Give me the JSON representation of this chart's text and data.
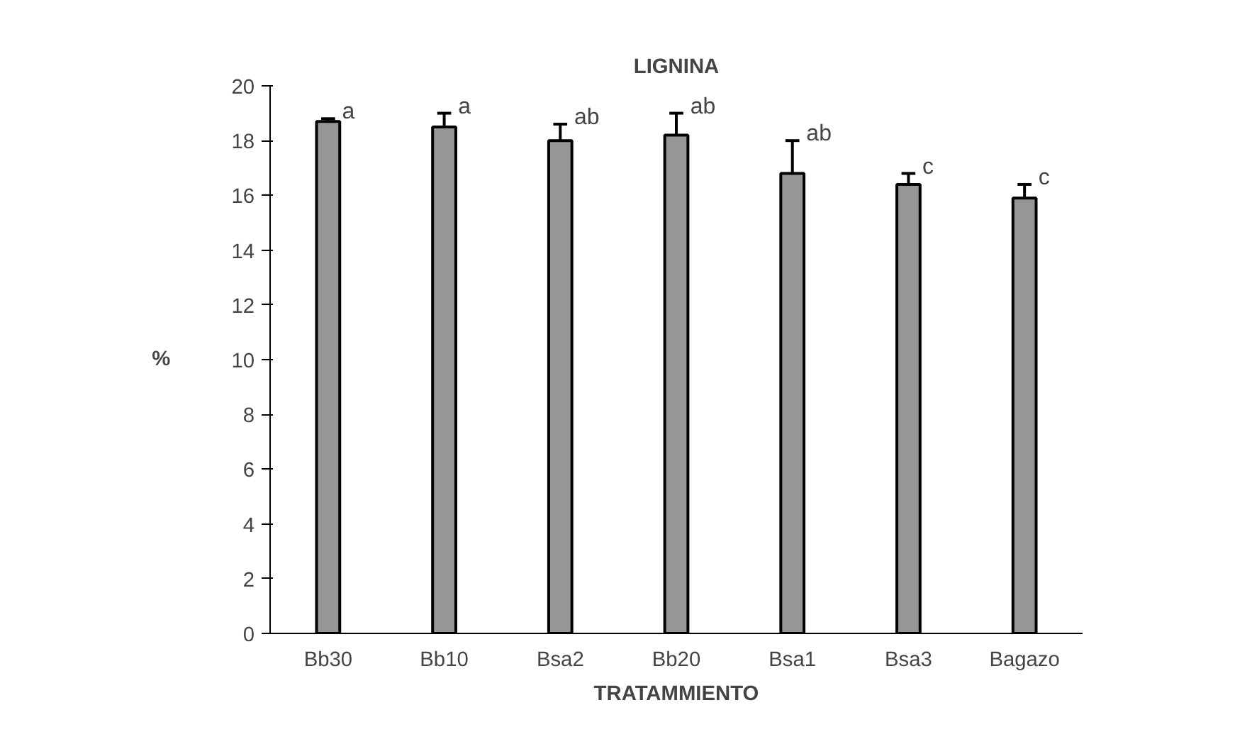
{
  "chart_data": {
    "type": "bar",
    "title": "LIGNINA",
    "xlabel": "TRATAMMIENTO",
    "ylabel": "%",
    "categories": [
      "Bb30",
      "Bb10",
      "Bsa2",
      "Bb20",
      "Bsa1",
      "Bsa3",
      "Bagazo"
    ],
    "values": [
      18.7,
      18.5,
      18.0,
      18.2,
      16.8,
      16.4,
      15.9
    ],
    "errors": [
      0.1,
      0.5,
      0.6,
      0.8,
      1.2,
      0.4,
      0.5
    ],
    "color": "#969696",
    "ylim": [
      0,
      20
    ],
    "yticks": [
      0,
      2,
      4,
      6,
      8,
      10,
      12,
      14,
      16,
      18,
      20
    ],
    "grid": false,
    "annotations": [
      {
        "text": "a",
        "x": "Bb30",
        "y": 18.8
      },
      {
        "text": "a",
        "x": "Bb10",
        "y": 19.0
      },
      {
        "text": "ab",
        "x": "Bsa2",
        "y": 18.6
      },
      {
        "text": "ab",
        "x": "Bb20",
        "y": 19.0
      },
      {
        "text": "ab",
        "x": "Bsa1",
        "y": 18.0
      },
      {
        "text": "c",
        "x": "Bsa3",
        "y": 16.8
      },
      {
        "text": "c",
        "x": "Bagazo",
        "y": 16.4
      }
    ]
  }
}
